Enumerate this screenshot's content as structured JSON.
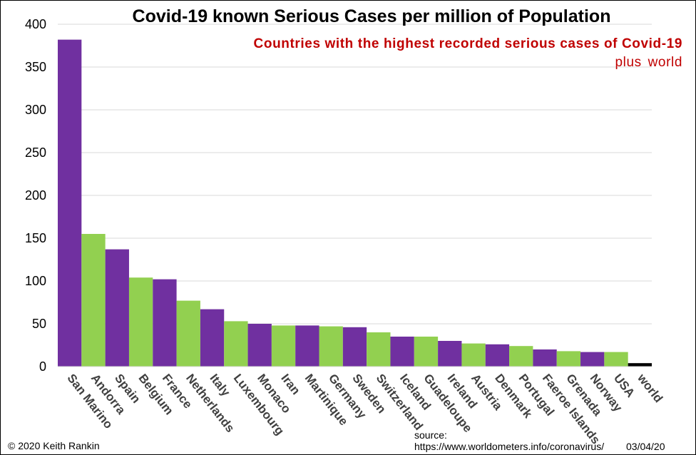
{
  "chart_data": {
    "type": "bar",
    "title": "Covid-19 known Serious Cases per million of Population",
    "subtitle": "Countries with  the highest recorded serious cases of Covid-19",
    "subtitle2": "plus world",
    "categories": [
      "San Marino",
      "Andorra",
      "Spain",
      "Belgium",
      "France",
      "Netherlands",
      "Italy",
      "Luxembourg",
      "Monaco",
      "Iran",
      "Martinique",
      "Germany",
      "Sweden",
      "Switzerland",
      "Iceland",
      "Guadeloupe",
      "Ireland",
      "Austria",
      "Denmark",
      "Portugal",
      "Faeroe Islands",
      "Grenada",
      "Norway",
      "USA",
      "world"
    ],
    "values": [
      382,
      155,
      137,
      104,
      102,
      77,
      67,
      53,
      50,
      48,
      48,
      47,
      46,
      40,
      35,
      35,
      30,
      27,
      26,
      24,
      20,
      18,
      17,
      17,
      4
    ],
    "colors": [
      "#7030a0",
      "#92d050",
      "#7030a0",
      "#92d050",
      "#7030a0",
      "#92d050",
      "#7030a0",
      "#92d050",
      "#7030a0",
      "#92d050",
      "#7030a0",
      "#92d050",
      "#7030a0",
      "#92d050",
      "#7030a0",
      "#92d050",
      "#7030a0",
      "#92d050",
      "#7030a0",
      "#92d050",
      "#7030a0",
      "#92d050",
      "#7030a0",
      "#92d050",
      "#000000"
    ],
    "ylim": [
      0,
      400
    ],
    "yticks": [
      0,
      50,
      100,
      150,
      200,
      250,
      300,
      350,
      400
    ],
    "grid": true,
    "xlabel": "",
    "ylabel": ""
  },
  "footer": {
    "copyright": "© 2020  Keith Rankin",
    "source_label": "source:",
    "source_url": "https://www.worldometers.info/coronavirus/",
    "date": "03/04/20"
  }
}
